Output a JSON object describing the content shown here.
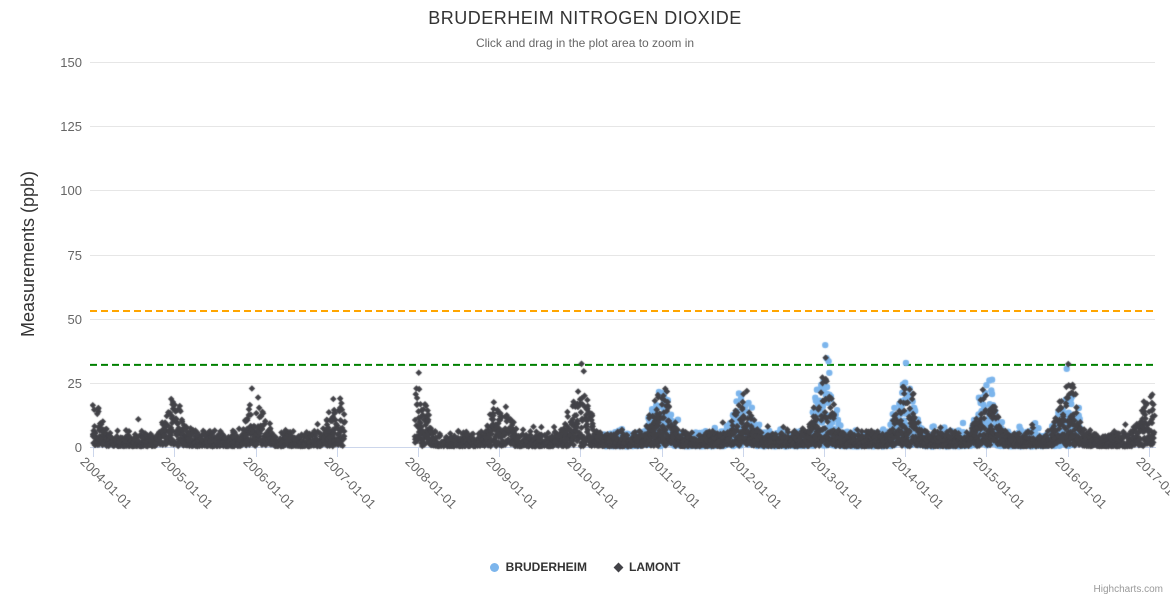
{
  "title": "BRUDERHEIM NITROGEN DIOXIDE",
  "subtitle": "Click and drag in the plot area to zoom in",
  "credits": "Highcharts.com",
  "y_axis": {
    "title": "Measurements (ppb)",
    "ticks": [
      0,
      25,
      50,
      75,
      100,
      125,
      150
    ]
  },
  "x_axis": {
    "tick_labels": [
      "2004-01-01",
      "2005-01-01",
      "2006-01-01",
      "2007-01-01",
      "2008-01-01",
      "2009-01-01",
      "2010-01-01",
      "2011-01-01",
      "2012-01-01",
      "2013-01-01",
      "2014-01-01",
      "2015-01-01",
      "2016-01-01",
      "2017-01-01"
    ]
  },
  "legend": [
    {
      "label": "BRUDERHEIM",
      "marker": "circle",
      "color": "#7cb5ec"
    },
    {
      "label": "LAMONT",
      "marker": "diamond",
      "color": "#434348"
    }
  ],
  "colors": {
    "grid": "#e6e6e6",
    "axis_line": "#ccd6eb",
    "text_dark": "#333333",
    "text_muted": "#666666",
    "orange_line": "#FFA500",
    "green_line": "#008000"
  },
  "chart_data": {
    "type": "scatter",
    "title": "BRUDERHEIM NITROGEN DIOXIDE",
    "subtitle": "Click and drag in the plot area to zoom in",
    "ylabel": "Measurements (ppb)",
    "xlabel": "",
    "ylim": [
      0,
      150
    ],
    "yticks": [
      0,
      25,
      50,
      75,
      100,
      125,
      150
    ],
    "xtick_labels": [
      "2004-01-01",
      "2005-01-01",
      "2006-01-01",
      "2007-01-01",
      "2008-01-01",
      "2009-01-01",
      "2010-01-01",
      "2011-01-01",
      "2012-01-01",
      "2013-01-01",
      "2014-01-01",
      "2015-01-01",
      "2016-01-01",
      "2017-01-01"
    ],
    "x_range": [
      "2004-01-01",
      "2017-01-25"
    ],
    "grid": "horizontal",
    "legend_position": "bottom",
    "plot_lines": [
      {
        "name": "orange-threshold-line",
        "value": 53,
        "color": "#FFA500",
        "style": "dashed"
      },
      {
        "name": "green-threshold-line",
        "value": 32,
        "color": "#008000",
        "style": "dashed"
      }
    ],
    "series": [
      {
        "name": "BRUDERHEIM",
        "marker": "circle",
        "color": "#7cb5ec",
        "seed": 20100415,
        "points_per_day": 1,
        "coverage": [
          [
            "2010-04-15",
            "2016-02-25"
          ]
        ],
        "seasonal_model": {
          "summer_base_range": [
            0,
            8
          ],
          "default_winter_peak": 20,
          "winter_peaks": {
            "2010": 14,
            "2011": 28,
            "2012": 26,
            "2013": 35,
            "2014": 31,
            "2015": 31,
            "2016": 27
          }
        },
        "outliers": [
          [
            "2013-01-06",
            39.7
          ],
          [
            "2013-01-12",
            34.6
          ],
          [
            "2013-01-21",
            33.4
          ],
          [
            "2014-01-04",
            32.7
          ],
          [
            "2015-12-28",
            30.5
          ]
        ]
      },
      {
        "name": "LAMONT",
        "marker": "diamond",
        "color": "#434348",
        "seed": 20040101,
        "points_per_day": 1,
        "coverage": [
          [
            "2004-01-01",
            "2007-02-05"
          ],
          [
            "2007-12-20",
            "2017-01-25"
          ]
        ],
        "seasonal_model": {
          "summer_base_range": [
            0,
            8
          ],
          "default_winter_peak": 20,
          "winter_peaks": {
            "2004": 22,
            "2005": 22,
            "2006": 25,
            "2007": 22,
            "2008": 27,
            "2009": 25,
            "2010": 29,
            "2011": 27,
            "2012": 26,
            "2013": 31,
            "2014": 29,
            "2015": 29,
            "2016": 30,
            "2017": 24
          }
        },
        "outliers": [
          [
            "2008-01-05",
            28.9
          ],
          [
            "2010-01-06",
            32.4
          ],
          [
            "2010-01-16",
            29.5
          ],
          [
            "2013-01-08",
            34.8
          ],
          [
            "2016-01-04",
            32.3
          ]
        ]
      }
    ]
  }
}
